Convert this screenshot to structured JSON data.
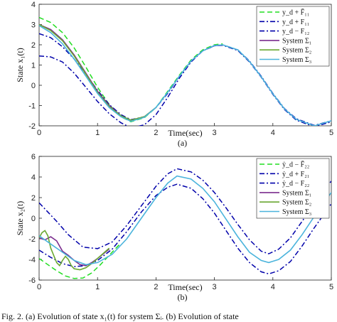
{
  "caption_text": "Fig. 2.   (a) Evolution of state x₁(t) for system Σᵢ. (b) Evolution of state",
  "chart_data": [
    {
      "type": "line",
      "panel_label": "(a)",
      "xlabel": "Time(sec)",
      "ylabel": "State x₁(t)",
      "xlim": [
        0,
        5
      ],
      "ylim": [
        -2,
        4
      ],
      "xticks": [
        "0",
        "1",
        "2",
        "3",
        "4",
        "5"
      ],
      "yticks": [
        "-2",
        "-1",
        "0",
        "1",
        "2",
        "3",
        "4"
      ],
      "legend_position": "top-right",
      "series": [
        {
          "name": "y_d + F̄₁₁",
          "color": "#22dd22",
          "dash": "dashed",
          "x": [
            0,
            0.2,
            0.4,
            0.6,
            0.8,
            1.0,
            1.2,
            1.4,
            1.57,
            1.8,
            2.0,
            2.2,
            2.4,
            2.6,
            2.8,
            3.0,
            3.14
          ],
          "y": [
            3.35,
            3.1,
            2.6,
            1.85,
            0.9,
            -0.1,
            -0.95,
            -1.55,
            -1.8,
            -1.6,
            -1.1,
            -0.3,
            0.5,
            1.25,
            1.75,
            2.0,
            2.05
          ]
        },
        {
          "name": "y_d + F₁₁",
          "color": "#0000aa",
          "dash": "dashdot",
          "x": [
            0,
            0.2,
            0.4,
            0.6,
            0.8,
            1.0,
            1.2,
            1.4,
            1.57,
            1.8,
            2.0,
            2.2,
            2.4,
            2.6,
            2.8,
            3.0,
            3.14,
            3.4,
            3.6,
            3.8,
            4.0,
            4.2,
            4.4,
            4.71,
            5.0
          ],
          "y": [
            2.55,
            2.35,
            1.9,
            1.3,
            0.55,
            -0.25,
            -0.95,
            -1.45,
            -1.7,
            -1.55,
            -1.1,
            -0.4,
            0.45,
            1.2,
            1.7,
            1.95,
            2.0,
            1.75,
            1.2,
            0.45,
            -0.4,
            -1.15,
            -1.65,
            -1.98,
            -1.75
          ]
        },
        {
          "name": "y_d − F₁₂",
          "color": "#0000aa",
          "dash": "dashdot",
          "x": [
            0,
            0.2,
            0.4,
            0.6,
            0.8,
            1.0,
            1.2,
            1.4,
            1.57,
            1.8,
            2.0,
            2.2,
            2.4,
            2.6,
            2.8,
            3.0,
            3.14,
            3.4,
            3.6,
            3.8,
            4.0,
            4.2,
            4.4,
            4.71,
            5.0
          ],
          "y": [
            1.45,
            1.4,
            1.15,
            0.6,
            -0.1,
            -0.8,
            -1.4,
            -1.85,
            -2.1,
            -1.95,
            -1.45,
            -0.6,
            0.35,
            1.15,
            1.7,
            1.95,
            1.98,
            1.72,
            1.15,
            0.4,
            -0.45,
            -1.2,
            -1.72,
            -2.05,
            -1.8
          ]
        },
        {
          "name": "System Σ₁",
          "color": "#7b2d8e",
          "dash": "solid",
          "x": [
            0,
            0.2,
            0.4,
            0.6,
            0.8,
            1.0,
            1.2,
            1.4,
            1.57,
            1.8,
            2.0
          ],
          "y": [
            3.0,
            2.75,
            2.25,
            1.5,
            0.6,
            -0.3,
            -1.0,
            -1.5,
            -1.75,
            -1.55,
            -1.1
          ]
        },
        {
          "name": "System Σ₂",
          "color": "#6aa832",
          "dash": "solid",
          "x": [
            0,
            0.2,
            0.4,
            0.6,
            0.8,
            1.0,
            1.2,
            1.4,
            1.57,
            1.8,
            2.0
          ],
          "y": [
            3.0,
            2.7,
            2.2,
            1.45,
            0.55,
            -0.35,
            -1.05,
            -1.5,
            -1.72,
            -1.55,
            -1.1
          ]
        },
        {
          "name": "System Σ₃",
          "color": "#4bb4dc",
          "dash": "solid",
          "x": [
            0,
            0.2,
            0.4,
            0.6,
            0.8,
            1.0,
            1.2,
            1.4,
            1.57,
            1.8,
            2.0,
            2.2,
            2.4,
            2.6,
            2.8,
            3.0,
            3.14,
            3.4,
            3.6,
            3.8,
            4.0,
            4.2,
            4.4,
            4.71,
            5.0
          ],
          "y": [
            2.95,
            2.6,
            2.05,
            1.3,
            0.45,
            -0.4,
            -1.1,
            -1.55,
            -1.78,
            -1.58,
            -1.1,
            -0.35,
            0.45,
            1.2,
            1.7,
            1.97,
            2.0,
            1.75,
            1.18,
            0.42,
            -0.42,
            -1.17,
            -1.68,
            -2.0,
            -1.75
          ]
        }
      ]
    },
    {
      "type": "line",
      "panel_label": "(b)",
      "xlabel": "Time(sec)",
      "ylabel": "State x₂(t)",
      "xlim": [
        0,
        5
      ],
      "ylim": [
        -6,
        6
      ],
      "xticks": [
        "0",
        "1",
        "2",
        "3",
        "4",
        "5"
      ],
      "yticks": [
        "-6",
        "-4",
        "-2",
        "0",
        "2",
        "4",
        "6"
      ],
      "legend_position": "top-right",
      "series": [
        {
          "name": "ẏ_d − F̄₂₂",
          "color": "#22dd22",
          "dash": "dashed",
          "x": [
            0,
            0.15,
            0.3,
            0.45,
            0.6,
            0.75,
            0.9,
            1.05,
            1.2,
            1.4
          ],
          "y": [
            -3.9,
            -4.5,
            -5.1,
            -5.6,
            -5.85,
            -5.8,
            -5.3,
            -4.5,
            -3.6,
            -2.4
          ]
        },
        {
          "name": "ẏ_d + F₂₁",
          "color": "#0000aa",
          "dash": "dashdot",
          "x": [
            0,
            0.3,
            0.5,
            0.75,
            1.0,
            1.25,
            1.5,
            1.75,
            2.0,
            2.2,
            2.36,
            2.6,
            2.8,
            3.0,
            3.2,
            3.4,
            3.6,
            3.8,
            3.93,
            4.1,
            4.3,
            4.5,
            4.7,
            4.9,
            5.0
          ],
          "y": [
            1.5,
            -0.3,
            -1.6,
            -2.8,
            -2.95,
            -2.3,
            -0.7,
            1.2,
            3.1,
            4.3,
            4.8,
            4.5,
            3.7,
            2.5,
            1.0,
            -0.6,
            -2.1,
            -3.2,
            -3.45,
            -3.0,
            -1.9,
            -0.3,
            1.3,
            2.9,
            3.6
          ]
        },
        {
          "name": "ẏ_d − F₂₂",
          "color": "#0000aa",
          "dash": "dashdot",
          "x": [
            0,
            0.2,
            0.4,
            0.6,
            0.8,
            1.0,
            1.25,
            1.5,
            1.75,
            2.0,
            2.2,
            2.36,
            2.6,
            2.8,
            3.0,
            3.2,
            3.4,
            3.6,
            3.8,
            3.93,
            4.1,
            4.3,
            4.5,
            4.7,
            4.9,
            5.0
          ],
          "y": [
            -3.1,
            -3.8,
            -4.4,
            -4.7,
            -4.6,
            -4.1,
            -3.0,
            -1.3,
            0.6,
            2.2,
            3.0,
            3.3,
            2.9,
            1.9,
            0.5,
            -1.2,
            -2.9,
            -4.3,
            -5.2,
            -5.4,
            -5.1,
            -4.2,
            -2.7,
            -1.0,
            0.6,
            1.4
          ]
        },
        {
          "name": "System Σ₁",
          "color": "#7b2d8e",
          "dash": "solid",
          "x": [
            0,
            0.1,
            0.2,
            0.3,
            0.4,
            0.5,
            0.6,
            0.7,
            0.8,
            0.9,
            1.0,
            1.2
          ],
          "y": [
            -1.9,
            -2.1,
            -1.8,
            -2.2,
            -3.2,
            -3.6,
            -4.1,
            -4.5,
            -4.6,
            -4.3,
            -3.9,
            -3.0
          ]
        },
        {
          "name": "System Σ₂",
          "color": "#6aa832",
          "dash": "solid",
          "x": [
            0,
            0.05,
            0.1,
            0.15,
            0.2,
            0.25,
            0.3,
            0.35,
            0.4,
            0.45,
            0.5,
            0.55,
            0.6,
            0.7,
            0.8,
            0.9,
            1.0,
            1.2
          ],
          "y": [
            -1.9,
            -1.4,
            -1.2,
            -1.7,
            -2.9,
            -3.6,
            -4.3,
            -4.6,
            -4.1,
            -3.7,
            -4.0,
            -4.6,
            -4.9,
            -5.0,
            -4.8,
            -4.4,
            -3.9,
            -2.9
          ]
        },
        {
          "name": "System Σ₃",
          "color": "#4bb4dc",
          "dash": "solid",
          "x": [
            0,
            0.2,
            0.4,
            0.6,
            0.8,
            1.0,
            1.25,
            1.5,
            1.75,
            2.0,
            2.2,
            2.36,
            2.6,
            2.8,
            3.0,
            3.2,
            3.4,
            3.6,
            3.8,
            3.93,
            4.1,
            4.3,
            4.5,
            4.7,
            4.9,
            5.0
          ],
          "y": [
            -1.7,
            -2.5,
            -3.3,
            -4.1,
            -4.5,
            -4.3,
            -3.5,
            -2.0,
            0.0,
            2.0,
            3.4,
            4.1,
            3.8,
            2.9,
            1.6,
            -0.1,
            -1.8,
            -3.3,
            -4.1,
            -4.3,
            -4.0,
            -3.1,
            -1.6,
            0.1,
            1.7,
            2.5
          ]
        }
      ]
    }
  ]
}
